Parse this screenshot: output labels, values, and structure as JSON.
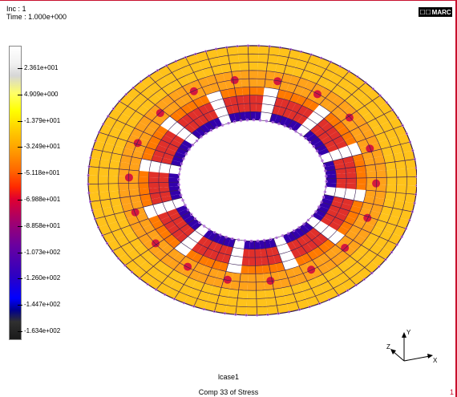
{
  "header": {
    "inc": "Inc :   1",
    "time": "Time : 1.000e+000"
  },
  "logo": {
    "text": "MARC",
    "mark": "☐☐"
  },
  "legend": {
    "ticks": [
      "2.361e+001",
      "4.909e+000",
      "-1.379e+001",
      "-3.249e+001",
      "-5.118e+001",
      "-6.988e+001",
      "-8.858e+001",
      "-1.073e+002",
      "-1.260e+002",
      "-1.447e+002",
      "-1.634e+002"
    ]
  },
  "colors": {
    "outer": "#ffc21a",
    "mid": "#ff7a00",
    "inner": "#cc0044",
    "deep": "#3300aa",
    "mesh": "#3a1e55",
    "node": "#c06cf0"
  },
  "triad": {
    "x": "X",
    "y": "Y",
    "z": "Z"
  },
  "footer": {
    "case": "lcase1",
    "comp": "Comp 33 of Stress",
    "page": "1"
  }
}
